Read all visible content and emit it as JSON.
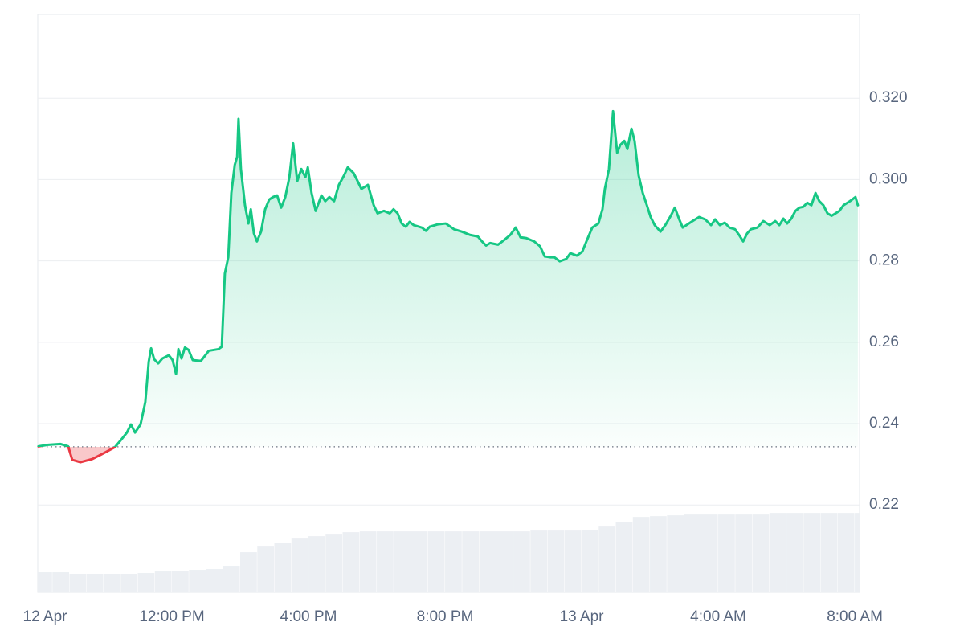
{
  "chart_data": {
    "type": "line",
    "color": "#16c784",
    "down_color": "#ea3943",
    "baseline": 0.2343,
    "grid": true,
    "xlim": [
      0.07,
      24.14
    ],
    "ylim": [
      0.1985,
      0.3406
    ],
    "y2lim": [
      0,
      720
    ],
    "xticks": [
      {
        "value": 0,
        "label": "12 Apr"
      },
      {
        "value": 4,
        "label": "12:00 PM"
      },
      {
        "value": 8,
        "label": "4:00 PM"
      },
      {
        "value": 12,
        "label": "8:00 PM"
      },
      {
        "value": 16,
        "label": "13 Apr"
      },
      {
        "value": 20,
        "label": "4:00 AM"
      },
      {
        "value": 24,
        "label": "8:00 AM"
      }
    ],
    "yticks": [
      0.22,
      0.24,
      0.26,
      0.28,
      {
        "value": 0.3,
        "label": "0.300"
      },
      {
        "value": 0.32,
        "label": "0.320"
      }
    ],
    "x": [
      0.09,
      0.38,
      0.73,
      0.96,
      1.08,
      1.32,
      1.67,
      2.02,
      2.33,
      2.49,
      2.68,
      2.8,
      2.92,
      3.08,
      3.22,
      3.32,
      3.39,
      3.48,
      3.6,
      3.72,
      3.91,
      4.02,
      4.12,
      4.19,
      4.28,
      4.38,
      4.49,
      4.61,
      4.85,
      5.08,
      5.36,
      5.46,
      5.55,
      5.65,
      5.74,
      5.84,
      5.91,
      5.95,
      6.02,
      6.14,
      6.24,
      6.31,
      6.4,
      6.49,
      6.61,
      6.73,
      6.85,
      6.96,
      7.08,
      7.2,
      7.32,
      7.44,
      7.55,
      7.67,
      7.79,
      7.91,
      7.98,
      8.09,
      8.21,
      8.38,
      8.49,
      8.61,
      8.75,
      8.89,
      9.04,
      9.15,
      9.32,
      9.44,
      9.55,
      9.74,
      9.91,
      10.02,
      10.21,
      10.38,
      10.49,
      10.61,
      10.73,
      10.85,
      10.96,
      11.08,
      11.32,
      11.44,
      11.55,
      11.79,
      12.02,
      12.26,
      12.49,
      12.73,
      12.96,
      13.08,
      13.2,
      13.32,
      13.55,
      13.74,
      13.91,
      14.07,
      14.21,
      14.38,
      14.61,
      14.78,
      14.92,
      15.08,
      15.2,
      15.36,
      15.55,
      15.67,
      15.86,
      16.02,
      16.14,
      16.31,
      16.49,
      16.61,
      16.68,
      16.8,
      16.92,
      17.04,
      17.13,
      17.25,
      17.34,
      17.46,
      17.55,
      17.67,
      17.79,
      17.91,
      18.02,
      18.14,
      18.31,
      18.45,
      18.61,
      18.73,
      18.85,
      18.96,
      19.25,
      19.44,
      19.62,
      19.79,
      19.91,
      20.05,
      20.19,
      20.33,
      20.49,
      20.61,
      20.73,
      20.85,
      20.96,
      21.15,
      21.32,
      21.51,
      21.67,
      21.79,
      21.91,
      22.02,
      22.14,
      22.26,
      22.38,
      22.49,
      22.61,
      22.73,
      22.85,
      22.96,
      23.08,
      23.2,
      23.32,
      23.44,
      23.55,
      23.67,
      23.86,
      24.02,
      24.09
    ],
    "values": [
      0.2344,
      0.2348,
      0.235,
      0.2344,
      0.2311,
      0.2305,
      0.2313,
      0.2328,
      0.2342,
      0.2358,
      0.2378,
      0.2398,
      0.2378,
      0.2398,
      0.2453,
      0.2552,
      0.2585,
      0.2558,
      0.2548,
      0.256,
      0.2568,
      0.2556,
      0.2522,
      0.2583,
      0.256,
      0.2587,
      0.2581,
      0.2556,
      0.2554,
      0.2579,
      0.2583,
      0.2589,
      0.2769,
      0.2809,
      0.2967,
      0.3036,
      0.3056,
      0.3149,
      0.3026,
      0.2937,
      0.2892,
      0.2927,
      0.2868,
      0.2848,
      0.2872,
      0.2927,
      0.2951,
      0.2957,
      0.2961,
      0.2931,
      0.2957,
      0.3006,
      0.3089,
      0.2996,
      0.3026,
      0.3006,
      0.303,
      0.2967,
      0.2923,
      0.2961,
      0.2947,
      0.2957,
      0.2947,
      0.2987,
      0.301,
      0.303,
      0.3016,
      0.2996,
      0.2977,
      0.2987,
      0.2937,
      0.2917,
      0.2923,
      0.2917,
      0.2927,
      0.2917,
      0.2892,
      0.2884,
      0.2896,
      0.2888,
      0.2882,
      0.2874,
      0.2884,
      0.289,
      0.2892,
      0.2878,
      0.2872,
      0.2864,
      0.286,
      0.2848,
      0.2838,
      0.2844,
      0.284,
      0.2852,
      0.2864,
      0.2882,
      0.2858,
      0.2856,
      0.2848,
      0.2836,
      0.2811,
      0.2809,
      0.2809,
      0.2799,
      0.2805,
      0.2819,
      0.2813,
      0.2823,
      0.2848,
      0.2882,
      0.2892,
      0.2927,
      0.2977,
      0.3026,
      0.3168,
      0.3066,
      0.3085,
      0.3095,
      0.3075,
      0.3125,
      0.3095,
      0.301,
      0.2967,
      0.2937,
      0.2908,
      0.2888,
      0.2872,
      0.2888,
      0.2911,
      0.2931,
      0.2904,
      0.2882,
      0.2898,
      0.2908,
      0.2902,
      0.2888,
      0.2902,
      0.2888,
      0.2894,
      0.2882,
      0.2878,
      0.2864,
      0.2848,
      0.2868,
      0.2878,
      0.2882,
      0.2898,
      0.2888,
      0.2898,
      0.2888,
      0.2904,
      0.2892,
      0.2904,
      0.2923,
      0.2931,
      0.2933,
      0.2943,
      0.2937,
      0.2967,
      0.2947,
      0.2937,
      0.2917,
      0.2911,
      0.2917,
      0.2923,
      0.2937,
      0.2947,
      0.2957,
      0.2937
    ],
    "volume": {
      "axis": "y2",
      "color": "#eceff3",
      "x": [
        0,
        0.5,
        1,
        1.5,
        2,
        2.5,
        3,
        3.5,
        4,
        4.5,
        5,
        5.5,
        6,
        6.5,
        7,
        7.5,
        8,
        8.5,
        9,
        9.5,
        10,
        10.5,
        11,
        11.5,
        12,
        12.5,
        13,
        13.5,
        14,
        14.5,
        15,
        15.5,
        16,
        16.5,
        17,
        17.5,
        18,
        18.5,
        19,
        19.5,
        20,
        20.5,
        21,
        21.5,
        22,
        22.5,
        23,
        23.5,
        24
      ],
      "values": [
        25,
        25,
        23,
        23,
        23,
        23,
        24,
        26,
        27,
        28,
        29,
        33,
        50,
        58,
        62,
        68,
        70,
        72,
        75,
        76,
        76,
        76,
        76,
        76,
        76,
        76,
        76,
        76,
        76,
        77,
        77,
        77,
        78,
        82,
        88,
        94,
        95,
        96,
        97,
        97,
        97,
        97,
        97,
        99,
        99,
        99,
        99,
        99,
        99
      ]
    }
  }
}
